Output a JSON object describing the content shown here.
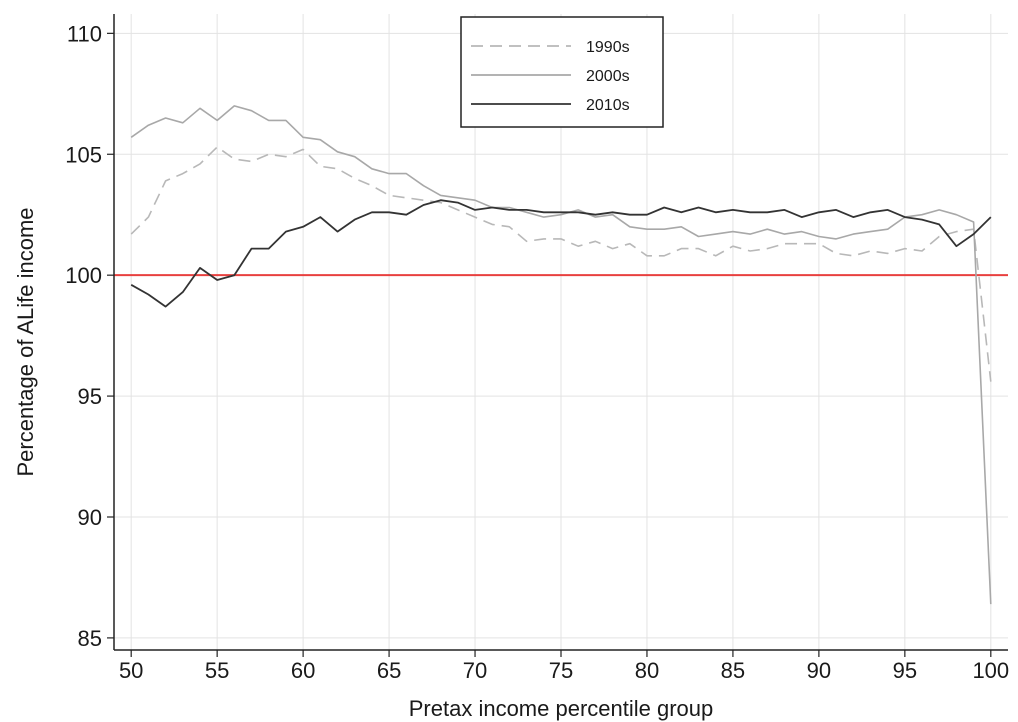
{
  "chart_data": {
    "type": "line",
    "xlabel": "Pretax income percentile group",
    "ylabel": "Percentage of ALife income",
    "xlim": [
      49,
      101
    ],
    "ylim": [
      84.5,
      110.8
    ],
    "xticks": [
      50,
      55,
      60,
      65,
      70,
      75,
      80,
      85,
      90,
      95,
      100
    ],
    "yticks": [
      85,
      90,
      95,
      100,
      105,
      110
    ],
    "grid": true,
    "legend_position": "top-center",
    "reference_line": {
      "y": 100,
      "color": "#e8403f"
    },
    "x": [
      50,
      51,
      52,
      53,
      54,
      55,
      56,
      57,
      58,
      59,
      60,
      61,
      62,
      63,
      64,
      65,
      66,
      67,
      68,
      69,
      70,
      71,
      72,
      73,
      74,
      75,
      76,
      77,
      78,
      79,
      80,
      81,
      82,
      83,
      84,
      85,
      86,
      87,
      88,
      89,
      90,
      91,
      92,
      93,
      94,
      95,
      96,
      97,
      98,
      99,
      100
    ],
    "series": [
      {
        "name": "1990s",
        "color": "#b8b8b8",
        "dash": "dashed",
        "values": [
          101.7,
          102.4,
          103.9,
          104.2,
          104.6,
          105.3,
          104.8,
          104.7,
          105.0,
          104.9,
          105.2,
          104.5,
          104.4,
          104.0,
          103.7,
          103.3,
          103.2,
          103.1,
          103.0,
          102.7,
          102.4,
          102.1,
          102.0,
          101.4,
          101.5,
          101.5,
          101.2,
          101.4,
          101.1,
          101.3,
          100.8,
          100.8,
          101.1,
          101.1,
          100.8,
          101.2,
          101.0,
          101.1,
          101.3,
          101.3,
          101.3,
          100.9,
          100.8,
          101.0,
          100.9,
          101.1,
          101.0,
          101.6,
          101.8,
          101.9,
          95.6
        ]
      },
      {
        "name": "2000s",
        "color": "#a8a8a8",
        "dash": "solid",
        "values": [
          105.7,
          106.2,
          106.5,
          106.3,
          106.9,
          106.4,
          107.0,
          106.8,
          106.4,
          106.4,
          105.7,
          105.6,
          105.1,
          104.9,
          104.4,
          104.2,
          104.2,
          103.7,
          103.3,
          103.2,
          103.1,
          102.8,
          102.8,
          102.6,
          102.4,
          102.5,
          102.7,
          102.4,
          102.5,
          102.0,
          101.9,
          101.9,
          102.0,
          101.6,
          101.7,
          101.8,
          101.7,
          101.9,
          101.7,
          101.8,
          101.6,
          101.5,
          101.7,
          101.8,
          101.9,
          102.4,
          102.5,
          102.7,
          102.5,
          102.2,
          86.4
        ]
      },
      {
        "name": "2010s",
        "color": "#333333",
        "dash": "solid",
        "values": [
          99.6,
          99.2,
          98.7,
          99.3,
          100.3,
          99.8,
          100.0,
          101.1,
          101.1,
          101.8,
          102.0,
          102.4,
          101.8,
          102.3,
          102.6,
          102.6,
          102.5,
          102.9,
          103.1,
          103.0,
          102.7,
          102.8,
          102.7,
          102.7,
          102.6,
          102.6,
          102.6,
          102.5,
          102.6,
          102.5,
          102.5,
          102.8,
          102.6,
          102.8,
          102.6,
          102.7,
          102.6,
          102.6,
          102.7,
          102.4,
          102.6,
          102.7,
          102.4,
          102.6,
          102.7,
          102.4,
          102.3,
          102.1,
          101.2,
          101.7,
          102.4
        ]
      }
    ]
  }
}
